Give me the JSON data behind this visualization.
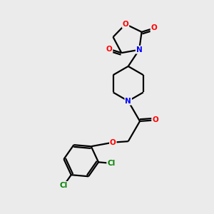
{
  "background_color": "#ebebeb",
  "bond_color": "#000000",
  "bond_width": 1.6,
  "atom_colors": {
    "O": "#ff0000",
    "N": "#0000ff",
    "Cl": "#008000",
    "C": "#000000"
  },
  "font_size": 7.5,
  "figsize": [
    3.0,
    3.0
  ],
  "dpi": 100
}
